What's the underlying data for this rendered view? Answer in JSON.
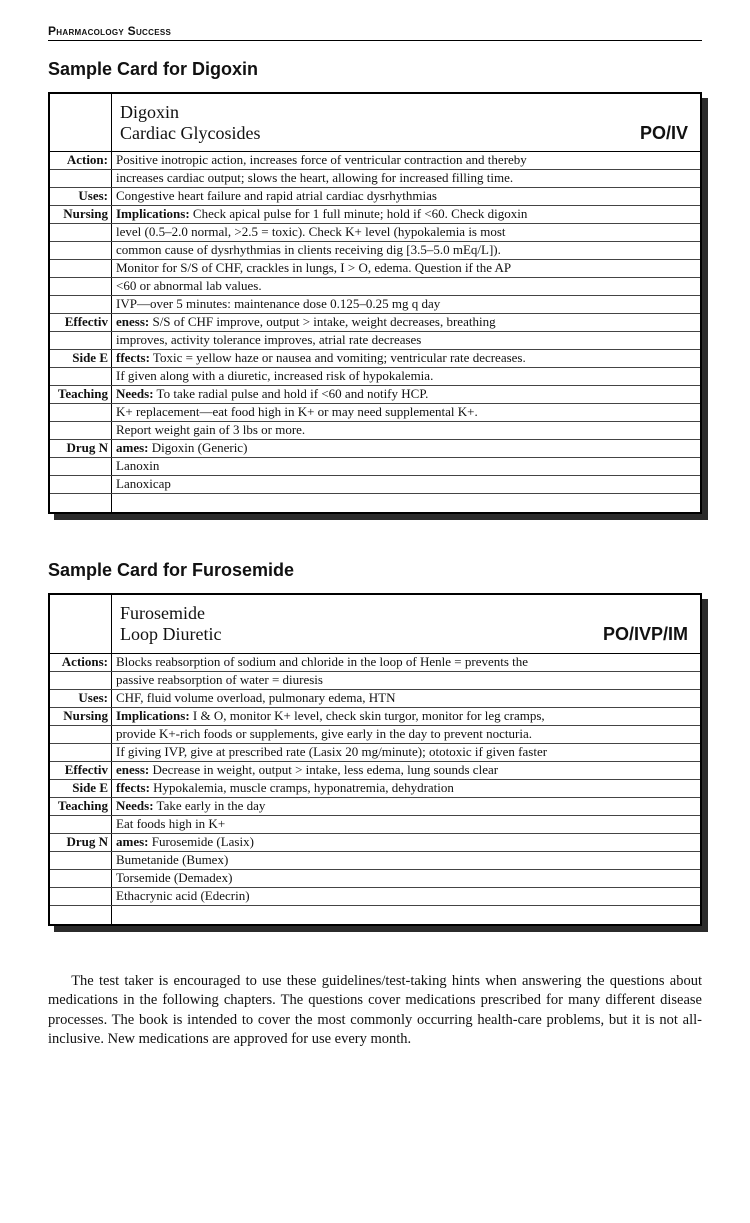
{
  "running_head": "Pharmacology Success",
  "card1": {
    "section_title": "Sample Card for Digoxin",
    "drug_name": "Digoxin",
    "drug_class": "Cardiac Glycosides",
    "route": "PO/IV",
    "rows": [
      {
        "margin": "Action:",
        "content": "Positive inotropic action, increases force of ventricular contraction and thereby"
      },
      {
        "margin": "",
        "content": "increases cardiac output; slows the heart, allowing for increased filling time."
      },
      {
        "margin": "Uses:",
        "content": "Congestive heart failure and rapid atrial cardiac dysrhythmias"
      },
      {
        "margin": "Nursing",
        "content": "<b>Implications:</b> Check apical pulse for 1 full minute; hold if <60. Check digoxin"
      },
      {
        "margin": "",
        "content": "level (0.5–2.0 normal, >2.5 = toxic). Check K+ level (hypokalemia is most"
      },
      {
        "margin": "",
        "content": "common cause of dysrhythmias in clients receiving dig [3.5–5.0 mEq/L])."
      },
      {
        "margin": "",
        "content": "Monitor for S/S of CHF, crackles in lungs, I > O, edema. Question if the AP"
      },
      {
        "margin": "",
        "content": "<60 or abnormal lab values."
      },
      {
        "margin": "",
        "content": "IVP—over 5 minutes: maintenance dose 0.125–0.25 mg q day"
      },
      {
        "margin": "Effectiv",
        "content": "<b>eness:</b> S/S of CHF improve, output > intake, weight decreases, breathing"
      },
      {
        "margin": "",
        "content": "improves, activity tolerance improves, atrial rate decreases"
      },
      {
        "margin": "Side E",
        "content": "<b>ffects:</b> Toxic = yellow haze or nausea and vomiting; ventricular rate decreases."
      },
      {
        "margin": "",
        "content": "If given along with a diuretic, increased risk of hypokalemia."
      },
      {
        "margin": "Teaching",
        "content": "<b>Needs:</b> To take radial pulse and hold if <60 and notify HCP."
      },
      {
        "margin": "",
        "content": "K+ replacement—eat food high in K+ or may need supplemental K+."
      },
      {
        "margin": "",
        "content": "Report weight gain of 3 lbs or more."
      },
      {
        "margin": "Drug N",
        "content": "<b>ames:</b> Digoxin (Generic)"
      },
      {
        "margin": "",
        "content": "Lanoxin"
      },
      {
        "margin": "",
        "content": "Lanoxicap"
      },
      {
        "margin": "",
        "content": ""
      }
    ]
  },
  "card2": {
    "section_title": "Sample Card for Furosemide",
    "drug_name": "Furosemide",
    "drug_class": "Loop Diuretic",
    "route": "PO/IVP/IM",
    "rows": [
      {
        "margin": "Actions:",
        "content": "Blocks reabsorption of sodium and chloride in the loop of Henle = prevents the"
      },
      {
        "margin": "",
        "content": "passive reabsorption of water = diuresis"
      },
      {
        "margin": "Uses:",
        "content": "CHF, fluid volume overload, pulmonary edema, HTN"
      },
      {
        "margin": "Nursing",
        "content": "<b>Implications:</b> I & O, monitor K+ level, check skin turgor, monitor for leg cramps,"
      },
      {
        "margin": "",
        "content": "provide K+-rich foods or supplements, give early in the day to prevent nocturia."
      },
      {
        "margin": "",
        "content": "If giving IVP, give at prescribed rate (Lasix 20 mg/minute); ototoxic if given faster"
      },
      {
        "margin": "Effectiv",
        "content": "<b>eness:</b> Decrease in weight, output > intake, less edema, lung sounds clear"
      },
      {
        "margin": "Side E",
        "content": "<b>ffects:</b> Hypokalemia, muscle cramps, hyponatremia, dehydration"
      },
      {
        "margin": "Teaching",
        "content": "<b>Needs:</b> Take early in the day"
      },
      {
        "margin": "",
        "content": "Eat foods high in K+"
      },
      {
        "margin": "Drug N",
        "content": "<b>ames:</b> Furosemide (Lasix)"
      },
      {
        "margin": "",
        "content": "Bumetanide (Bumex)"
      },
      {
        "margin": "",
        "content": "Torsemide (Demadex)"
      },
      {
        "margin": "",
        "content": "Ethacrynic acid (Edecrin)"
      },
      {
        "margin": "",
        "content": ""
      }
    ]
  },
  "closing_paragraph": "The test taker is encouraged to use these guidelines/test-taking hints when answering the questions about medications in the following chapters. The questions cover medications prescribed for many different disease processes. The book is intended to cover the most commonly occurring health-care problems, but it is not all-inclusive. New medications are approved for use every month."
}
